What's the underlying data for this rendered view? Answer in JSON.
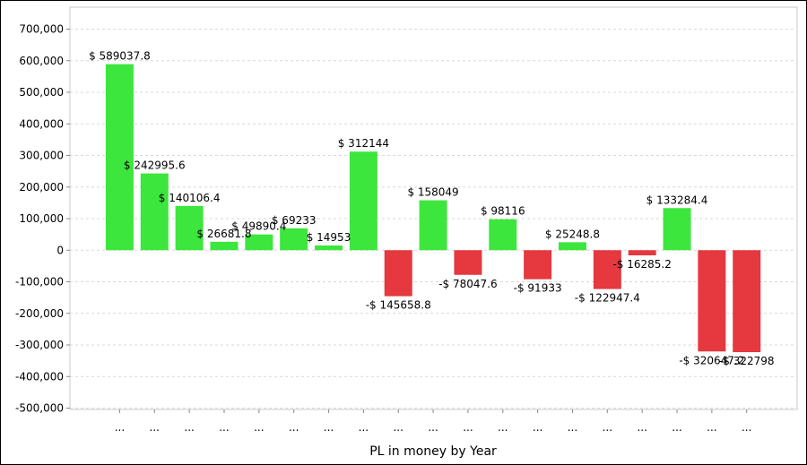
{
  "chart_data": {
    "type": "bar",
    "xlabel": "PL in money by Year",
    "ylabel": "",
    "ylim": [
      -500000,
      700000
    ],
    "yticks": [
      "700,000",
      "600,000",
      "500,000",
      "400,000",
      "300,000",
      "200,000",
      "100,000",
      "0",
      "-100,000",
      "-200,000",
      "-300,000",
      "-400,000",
      "-500,000"
    ],
    "ytick_values": [
      700000,
      600000,
      500000,
      400000,
      300000,
      200000,
      100000,
      0,
      -100000,
      -200000,
      -300000,
      -400000,
      -500000
    ],
    "categories": [
      "...",
      "...",
      "...",
      "...",
      "...",
      "...",
      "...",
      "...",
      "...",
      "...",
      "...",
      "...",
      "...",
      "...",
      "...",
      "...",
      "...",
      "...",
      "..."
    ],
    "values": [
      589037.8,
      242995.6,
      140106.4,
      26681.8,
      49890.4,
      69233,
      14953,
      312144,
      -145658.8,
      158049,
      -78047.6,
      98116,
      -91933,
      25248.8,
      -122947.4,
      -16285.2,
      133284.4,
      -320647.2,
      -322798
    ],
    "data_labels": [
      "$ 589037.8",
      "$ 242995.6",
      "$ 140106.4",
      "$ 26681.8",
      "$ 49890.4",
      "$ 69233",
      "$ 14953",
      "$ 312144",
      "-$ 145658.8",
      "$ 158049",
      "-$ 78047.6",
      "$ 98116",
      "-$ 91933",
      "$ 25248.8",
      "-$ 122947.4",
      "-$ 16285.2",
      "$ 133284.4",
      "-$ 320647.2",
      "-$ 322798"
    ],
    "grid": true,
    "colors": {
      "positive": "#3DE63D",
      "negative": "#E5383F",
      "grid": "#D9D9D9",
      "axis": "#888888"
    }
  }
}
